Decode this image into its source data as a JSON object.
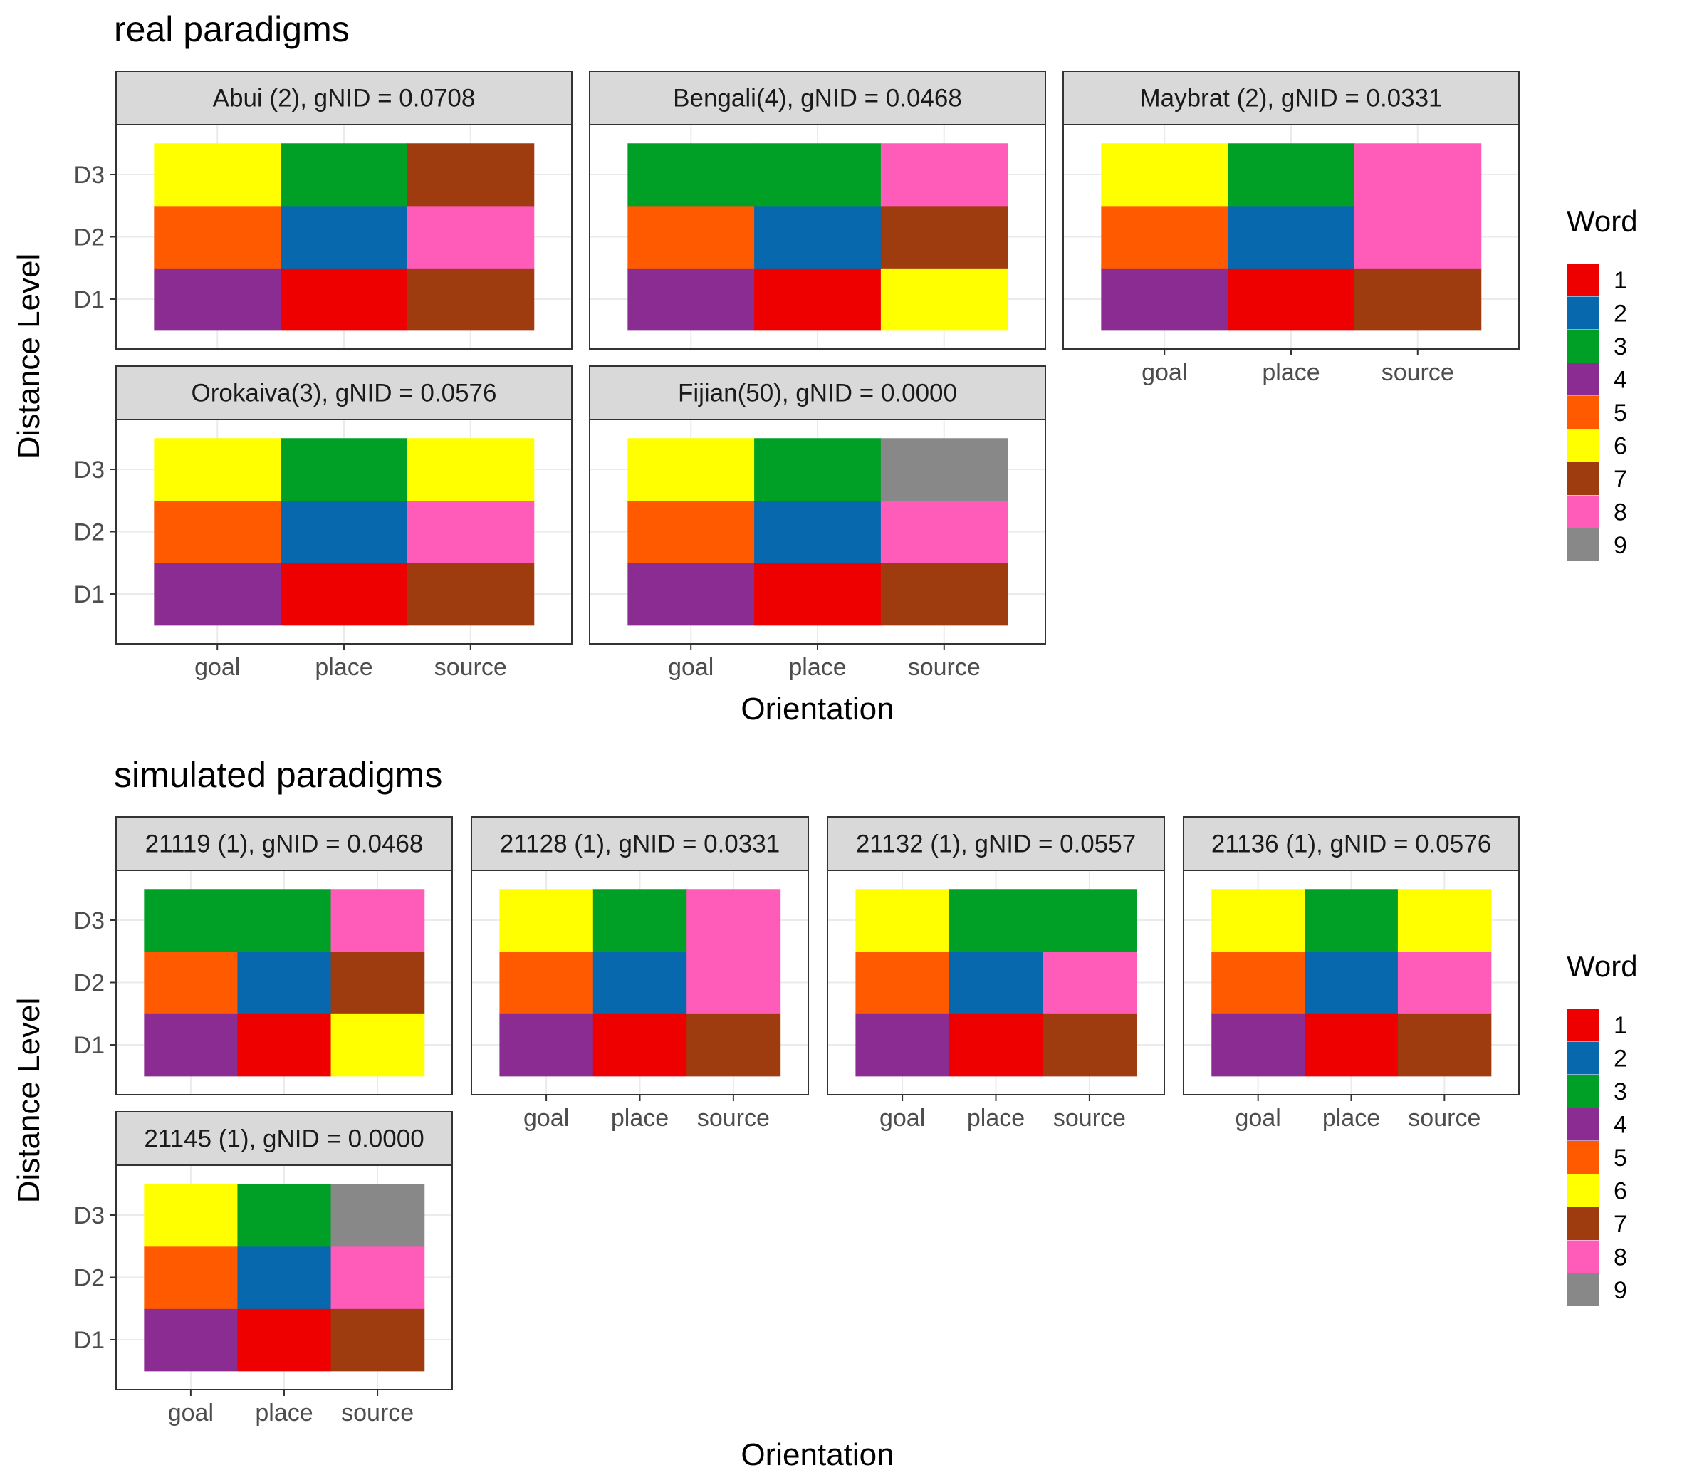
{
  "colors": {
    "1": "#EE0000",
    "2": "#0868AE",
    "3": "#00A026",
    "4": "#8B2C92",
    "5": "#FF5A00",
    "6": "#FFFF00",
    "7": "#9E3C10",
    "8": "#FF5BB8",
    "9": "#888888",
    "strip_bg": "#D9D9D9",
    "grid": "#EBEBEB"
  },
  "chart_data": [
    {
      "type": "heatmap",
      "title": "real paradigms",
      "xlabel": "Orientation",
      "ylabel": "Distance Level",
      "x_categories": [
        "goal",
        "place",
        "source"
      ],
      "y_categories": [
        "D1",
        "D2",
        "D3"
      ],
      "legend": {
        "title": "Word",
        "labels": [
          "1",
          "2",
          "3",
          "4",
          "5",
          "6",
          "7",
          "8",
          "9"
        ],
        "placement": "right"
      },
      "panels": [
        {
          "label": "Abui (2), gNID = 0.0708",
          "cells": {
            "D1": [
              4,
              1,
              7
            ],
            "D2": [
              5,
              2,
              8
            ],
            "D3": [
              6,
              3,
              7
            ]
          }
        },
        {
          "label": "Bengali(4), gNID = 0.0468",
          "cells": {
            "D1": [
              4,
              1,
              6
            ],
            "D2": [
              5,
              2,
              7
            ],
            "D3": [
              3,
              3,
              8
            ]
          }
        },
        {
          "label": "Maybrat (2), gNID = 0.0331",
          "cells": {
            "D1": [
              4,
              1,
              7
            ],
            "D2": [
              5,
              2,
              8
            ],
            "D3": [
              6,
              3,
              8
            ]
          }
        },
        {
          "label": "Orokaiva(3), gNID = 0.0576",
          "cells": {
            "D1": [
              4,
              1,
              7
            ],
            "D2": [
              5,
              2,
              8
            ],
            "D3": [
              6,
              3,
              6
            ]
          }
        },
        {
          "label": "Fijian(50), gNID = 0.0000",
          "cells": {
            "D1": [
              4,
              1,
              7
            ],
            "D2": [
              5,
              2,
              8
            ],
            "D3": [
              6,
              3,
              9
            ]
          }
        }
      ]
    },
    {
      "type": "heatmap",
      "title": "simulated paradigms",
      "xlabel": "Orientation",
      "ylabel": "Distance Level",
      "x_categories": [
        "goal",
        "place",
        "source"
      ],
      "y_categories": [
        "D1",
        "D2",
        "D3"
      ],
      "legend": {
        "title": "Word",
        "labels": [
          "1",
          "2",
          "3",
          "4",
          "5",
          "6",
          "7",
          "8",
          "9"
        ],
        "placement": "right"
      },
      "panels": [
        {
          "label": "21119 (1), gNID = 0.0468",
          "cells": {
            "D1": [
              4,
              1,
              6
            ],
            "D2": [
              5,
              2,
              7
            ],
            "D3": [
              3,
              3,
              8
            ]
          }
        },
        {
          "label": "21128 (1), gNID = 0.0331",
          "cells": {
            "D1": [
              4,
              1,
              7
            ],
            "D2": [
              5,
              2,
              8
            ],
            "D3": [
              6,
              3,
              8
            ]
          }
        },
        {
          "label": "21132 (1), gNID = 0.0557",
          "cells": {
            "D1": [
              4,
              1,
              7
            ],
            "D2": [
              5,
              2,
              8
            ],
            "D3": [
              6,
              3,
              3
            ]
          }
        },
        {
          "label": "21136 (1), gNID = 0.0576",
          "cells": {
            "D1": [
              4,
              1,
              7
            ],
            "D2": [
              5,
              2,
              8
            ],
            "D3": [
              6,
              3,
              6
            ]
          }
        },
        {
          "label": "21145 (1), gNID = 0.0000",
          "cells": {
            "D1": [
              4,
              1,
              7
            ],
            "D2": [
              5,
              2,
              8
            ],
            "D3": [
              6,
              3,
              9
            ]
          }
        }
      ]
    }
  ]
}
